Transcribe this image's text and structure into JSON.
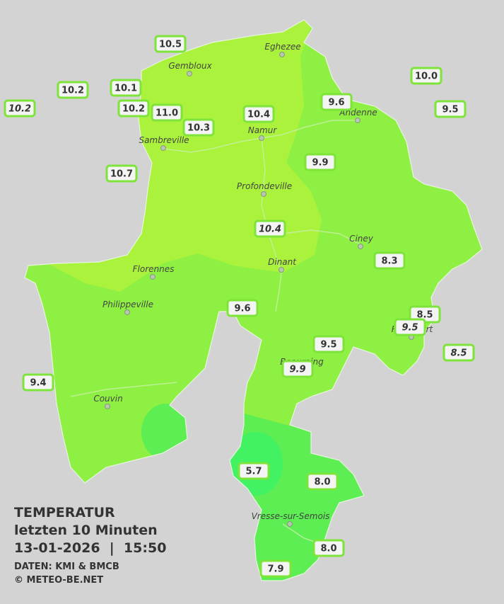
{
  "legend": {
    "title": "TEMPERATUR",
    "subtitle": "letzten 10 Minuten",
    "datetime": "13-01-2026  |  15:50",
    "source": "DATEN: KMI & BMCB",
    "copyright": "© METEO-BE.NET"
  },
  "cities": [
    "Eghezee",
    "Gembloux",
    "Andenne",
    "Namur",
    "Sambreville",
    "Profondeville",
    "Ciney",
    "Dinant",
    "Florennes",
    "Philippeville",
    "Rochefort",
    "Beauraing",
    "Couvin",
    "Vresse-sur-Semois"
  ],
  "stations": [
    "10.5",
    "10.2",
    "10.2",
    "10.1",
    "10.2",
    "11.0",
    "10.3",
    "10.4",
    "9.6",
    "10.0",
    "9.5",
    "10.7",
    "9.9",
    "10.4",
    "8.3",
    "9.6",
    "8.5",
    "9.5",
    "8.5",
    "9.5",
    "9.9",
    "9.4",
    "5.7",
    "8.0",
    "8.0",
    "7.9"
  ]
}
